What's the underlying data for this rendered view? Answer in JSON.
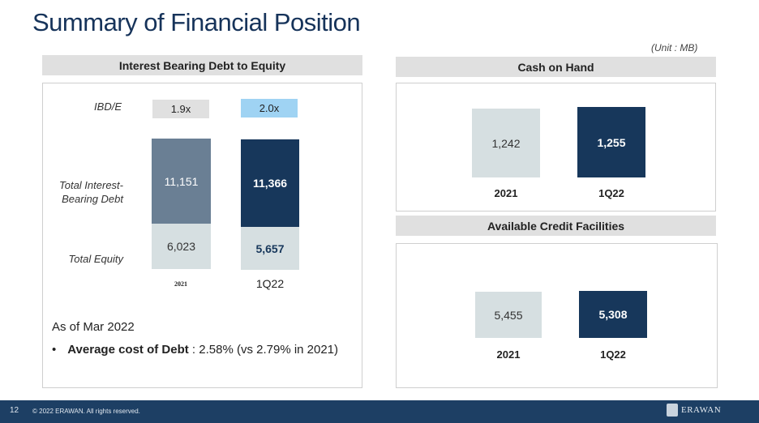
{
  "title": "Summary of Financial Position",
  "unit": "(Unit : MB)",
  "ibd_panel": {
    "header": "Interest Bearing Debt to Equity",
    "ratio_label": "IBD/E",
    "debt_label": "Total Interest-Bearing Debt",
    "equity_label": "Total Equity",
    "as_of": "As of Mar 2022",
    "bullet_prefix": "Average cost of Debt",
    "bullet_value": ": 2.58% (vs 2.79% in 2021)"
  },
  "cash_panel": {
    "header": "Cash on Hand"
  },
  "credit_panel": {
    "header": "Available Credit Facilities"
  },
  "chart_data": [
    {
      "type": "bar",
      "stacked": true,
      "title": "Interest Bearing Debt to Equity",
      "categories": [
        "2021",
        "1Q22"
      ],
      "ratio": [
        "1.9x",
        "2.0x"
      ],
      "series": [
        {
          "name": "Total Interest-Bearing Debt",
          "values": [
            11151,
            11366
          ],
          "labels": [
            "11,151",
            "11,366"
          ]
        },
        {
          "name": "Total Equity",
          "values": [
            6023,
            5657
          ],
          "labels": [
            "6,023",
            "5,657"
          ]
        }
      ]
    },
    {
      "type": "bar",
      "title": "Cash on Hand",
      "categories": [
        "2021",
        "1Q22"
      ],
      "values": [
        1242,
        1255
      ],
      "labels": [
        "1,242",
        "1,255"
      ]
    },
    {
      "type": "bar",
      "title": "Available Credit Facilities",
      "categories": [
        "2021",
        "1Q22"
      ],
      "values": [
        5455,
        5308
      ],
      "labels": [
        "5,455",
        "5,308"
      ]
    }
  ],
  "colors": {
    "navy": "#17375b",
    "slate": "#6a7f94",
    "light": "#d6dfe1",
    "ratio_2021": "#e0e0e0",
    "ratio_1q22": "#9fd3f3"
  },
  "footer": {
    "page": "12",
    "copyright": "© 2022 ERAWAN. All rights reserved.",
    "logo_text": "ERAWAN"
  }
}
